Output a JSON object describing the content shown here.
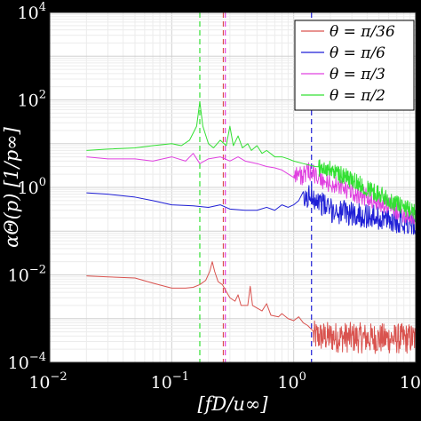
{
  "chart_data": {
    "type": "line",
    "xlabel": "[fD/u∞]",
    "ylabel": "αΘ(p) [1/p∞]",
    "x_scale": "log",
    "y_scale": "log",
    "xlim": [
      0.01,
      10
    ],
    "ylim": [
      0.0001,
      10000
    ],
    "grid": true,
    "legend_placement": "top-right",
    "x_tick_labels": [
      {
        "value": 0.01,
        "base": "10",
        "exp": "−2"
      },
      {
        "value": 0.1,
        "base": "10",
        "exp": "−1"
      },
      {
        "value": 1,
        "base": "10",
        "exp": "0"
      },
      {
        "value": 10,
        "base": "10",
        "exp": "1"
      }
    ],
    "y_tick_labels": [
      {
        "value": 0.0001,
        "base": "10",
        "exp": "−4"
      },
      {
        "value": 0.01,
        "base": "10",
        "exp": "−2"
      },
      {
        "value": 1,
        "base": "10",
        "exp": "0"
      },
      {
        "value": 100,
        "base": "10",
        "exp": "2"
      },
      {
        "value": 10000,
        "base": "10",
        "exp": "4"
      }
    ],
    "series": [
      {
        "name": "θ = π/36",
        "color": "#d9534f",
        "noise_start": 1.45,
        "noise_amplitude": 0.35,
        "points": [
          [
            0.02,
            0.0095
          ],
          [
            0.03,
            0.009
          ],
          [
            0.05,
            0.0085
          ],
          [
            0.07,
            0.0065
          ],
          [
            0.1,
            0.005
          ],
          [
            0.13,
            0.005
          ],
          [
            0.15,
            0.0052
          ],
          [
            0.17,
            0.006
          ],
          [
            0.19,
            0.0075
          ],
          [
            0.205,
            0.012
          ],
          [
            0.215,
            0.02
          ],
          [
            0.225,
            0.012
          ],
          [
            0.24,
            0.007
          ],
          [
            0.26,
            0.006
          ],
          [
            0.3,
            0.003
          ],
          [
            0.33,
            0.0025
          ],
          [
            0.35,
            0.0035
          ],
          [
            0.37,
            0.002
          ],
          [
            0.42,
            0.002
          ],
          [
            0.44,
            0.0055
          ],
          [
            0.46,
            0.002
          ],
          [
            0.55,
            0.0015
          ],
          [
            0.6,
            0.0022
          ],
          [
            0.65,
            0.0012
          ],
          [
            0.75,
            0.0011
          ],
          [
            0.8,
            0.0013
          ],
          [
            0.9,
            0.001
          ],
          [
            1.0,
            0.0009
          ],
          [
            1.1,
            0.0011
          ],
          [
            1.2,
            0.0008
          ],
          [
            1.3,
            0.0007
          ],
          [
            1.45,
            0.0004
          ],
          [
            2.0,
            0.00038
          ],
          [
            3.0,
            0.00037
          ],
          [
            5.0,
            0.00035
          ],
          [
            10.0,
            0.00035
          ]
        ]
      },
      {
        "name": "θ = π/6",
        "color": "#1f1fd6",
        "noise_start": 1.2,
        "noise_amplitude": 0.28,
        "points": [
          [
            0.02,
            0.75
          ],
          [
            0.03,
            0.7
          ],
          [
            0.05,
            0.6
          ],
          [
            0.07,
            0.5
          ],
          [
            0.1,
            0.4
          ],
          [
            0.15,
            0.38
          ],
          [
            0.2,
            0.35
          ],
          [
            0.25,
            0.4
          ],
          [
            0.3,
            0.32
          ],
          [
            0.4,
            0.3
          ],
          [
            0.5,
            0.3
          ],
          [
            0.6,
            0.35
          ],
          [
            0.7,
            0.3
          ],
          [
            0.8,
            0.4
          ],
          [
            0.9,
            0.35
          ],
          [
            1.0,
            0.4
          ],
          [
            1.1,
            0.5
          ],
          [
            1.2,
            0.45
          ],
          [
            1.4,
            0.7
          ],
          [
            1.6,
            0.5
          ],
          [
            2.0,
            0.3
          ],
          [
            3.0,
            0.25
          ],
          [
            5.0,
            0.2
          ],
          [
            10.0,
            0.15
          ]
        ]
      },
      {
        "name": "θ = π/3",
        "color": "#e040e0",
        "noise_start": 1.0,
        "noise_amplitude": 0.22,
        "points": [
          [
            0.02,
            5.0
          ],
          [
            0.03,
            4.5
          ],
          [
            0.05,
            4.5
          ],
          [
            0.07,
            4.0
          ],
          [
            0.1,
            5.0
          ],
          [
            0.13,
            4.0
          ],
          [
            0.15,
            6.0
          ],
          [
            0.17,
            3.5
          ],
          [
            0.2,
            4.5
          ],
          [
            0.25,
            5.0
          ],
          [
            0.3,
            4.0
          ],
          [
            0.35,
            5.0
          ],
          [
            0.4,
            4.0
          ],
          [
            0.5,
            3.5
          ],
          [
            0.6,
            3.0
          ],
          [
            0.7,
            2.8
          ],
          [
            0.8,
            2.5
          ],
          [
            1.0,
            2.2
          ],
          [
            1.2,
            1.8
          ],
          [
            1.4,
            2.5
          ],
          [
            1.6,
            1.5
          ],
          [
            2.0,
            1.2
          ],
          [
            3.0,
            0.8
          ],
          [
            5.0,
            0.45
          ],
          [
            10.0,
            0.2
          ]
        ]
      },
      {
        "name": "θ = π/2",
        "color": "#33e033",
        "noise_start": 1.6,
        "noise_amplitude": 0.2,
        "points": [
          [
            0.02,
            7.0
          ],
          [
            0.03,
            7.5
          ],
          [
            0.05,
            8.0
          ],
          [
            0.07,
            9.0
          ],
          [
            0.1,
            10.0
          ],
          [
            0.12,
            9.0
          ],
          [
            0.14,
            12.0
          ],
          [
            0.16,
            25.0
          ],
          [
            0.17,
            90.0
          ],
          [
            0.18,
            25.0
          ],
          [
            0.2,
            10.0
          ],
          [
            0.22,
            8.0
          ],
          [
            0.25,
            12.0
          ],
          [
            0.28,
            9.0
          ],
          [
            0.3,
            25.0
          ],
          [
            0.32,
            9.0
          ],
          [
            0.35,
            15.0
          ],
          [
            0.38,
            8.0
          ],
          [
            0.42,
            10.0
          ],
          [
            0.45,
            7.0
          ],
          [
            0.5,
            9.0
          ],
          [
            0.55,
            6.0
          ],
          [
            0.6,
            7.0
          ],
          [
            0.7,
            5.0
          ],
          [
            0.8,
            5.0
          ],
          [
            0.9,
            4.5
          ],
          [
            1.0,
            4.0
          ],
          [
            1.2,
            3.5
          ],
          [
            1.5,
            3.0
          ],
          [
            2.0,
            2.5
          ],
          [
            3.0,
            1.5
          ],
          [
            5.0,
            0.7
          ],
          [
            10.0,
            0.25
          ]
        ]
      }
    ],
    "vertical_lines": [
      {
        "x": 0.17,
        "color": "#33e033"
      },
      {
        "x": 0.265,
        "color": "#d9534f"
      },
      {
        "x": 0.275,
        "color": "#e040e0"
      },
      {
        "x": 1.4,
        "color": "#1f1fd6"
      }
    ]
  }
}
